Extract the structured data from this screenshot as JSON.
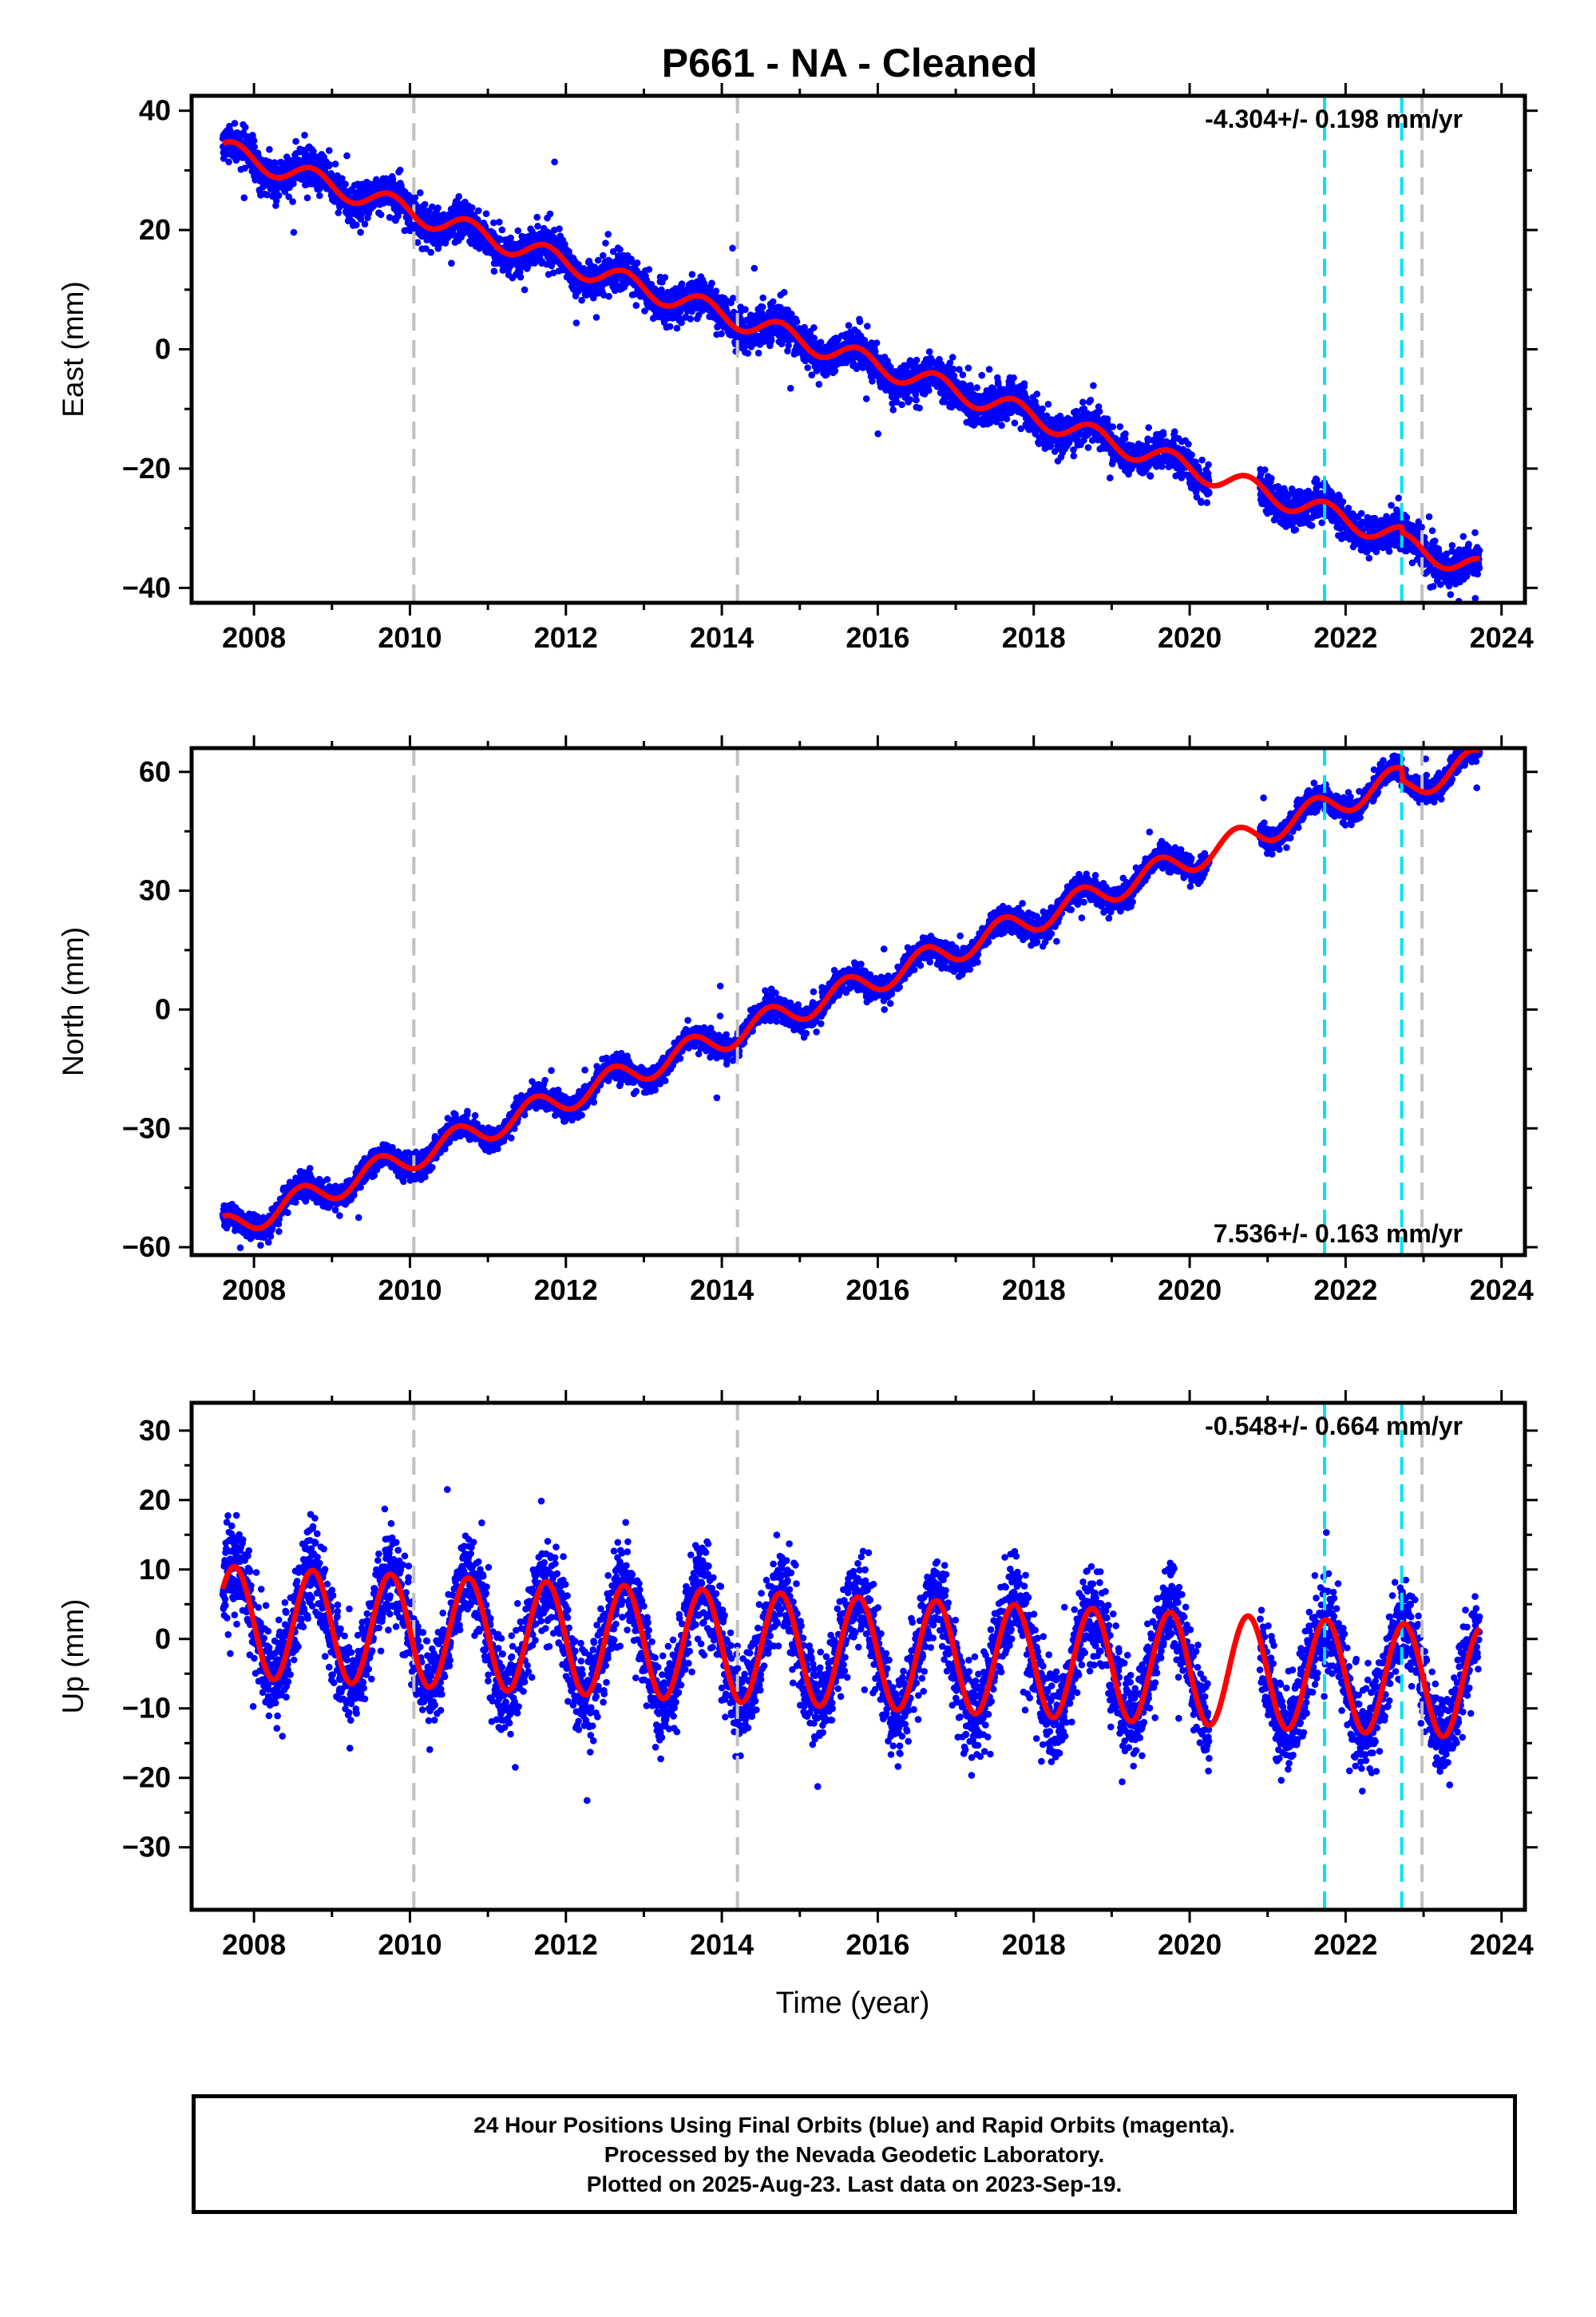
{
  "chart_data": {
    "title": "P661  - NA - Cleaned",
    "xlabel": "Time (year)",
    "xlim": [
      2007.2,
      2024.3
    ],
    "x_ticks": [
      2008,
      2010,
      2012,
      2014,
      2016,
      2018,
      2020,
      2022,
      2024
    ],
    "x_tick_labels": [
      "2008",
      "2010",
      "2012",
      "2014",
      "2016",
      "2018",
      "2020",
      "2022",
      "2024"
    ],
    "data_start": 2007.6,
    "data_end": 2023.72,
    "data_gap": [
      2020.25,
      2020.9
    ],
    "equipment_change_lines": [
      2010.05,
      2014.2,
      2022.98
    ],
    "earthquake_lines": [
      2021.73,
      2022.72
    ],
    "panels": [
      {
        "type": "scatter",
        "ylabel": "East (mm)",
        "ylim": [
          -42.5,
          42.5
        ],
        "y_ticks": [
          -40,
          -20,
          0,
          20,
          40
        ],
        "y_tick_labels": [
          "−40",
          "−20",
          "0",
          "20",
          "40"
        ],
        "rate_label": "-4.304+/- 0.198 mm/yr",
        "rate_position": "top-right",
        "model": {
          "y_at_start": 33.5,
          "rate_mm_per_yr": -4.304,
          "annual_amplitude": 1.8,
          "peak_phase_year": 0.75
        },
        "scatter_sigma": 1.6,
        "steps": [
          {
            "year": 2022.72,
            "offset": -1.0
          }
        ]
      },
      {
        "type": "scatter",
        "ylabel": "North (mm)",
        "ylim": [
          -62,
          66
        ],
        "y_ticks": [
          -60,
          -30,
          0,
          30,
          60
        ],
        "y_tick_labels": [
          "−60",
          "−30",
          "0",
          "30",
          "60"
        ],
        "rate_label": "7.536+/- 0.163 mm/yr",
        "rate_position": "bottom-right",
        "model": {
          "y_at_start": -55.5,
          "rate_mm_per_yr": 7.536,
          "annual_amplitude": 3.3,
          "peak_phase_year": 0.6
        },
        "scatter_sigma": 1.5,
        "steps": [
          {
            "year": 2022.72,
            "offset": -3.0
          }
        ]
      },
      {
        "type": "scatter",
        "ylabel": "Up (mm)",
        "ylim": [
          -39,
          34
        ],
        "y_ticks": [
          -30,
          -20,
          -10,
          0,
          10,
          20,
          30
        ],
        "y_tick_labels": [
          "−30",
          "−20",
          "−10",
          "0",
          "10",
          "20",
          "30"
        ],
        "rate_label": "-0.548+/- 0.664 mm/yr",
        "rate_position": "top-right",
        "model": {
          "y_at_start": 2.5,
          "rate_mm_per_yr": -0.548,
          "annual_amplitude": 8.0,
          "peak_phase_year": 0.75
        },
        "scatter_sigma": 3.2,
        "steps": []
      }
    ],
    "colors": {
      "points": "#0000ff",
      "model": "#ff0000",
      "equipment_lines": "#c0c0c0",
      "earthquake_lines": "#00e5ee",
      "frame": "#000000"
    }
  },
  "footer": {
    "line1": "24 Hour Positions Using Final Orbits (blue) and Rapid Orbits (magenta).",
    "line2": "Processed by the Nevada Geodetic Laboratory.",
    "line3": "Plotted on 2025-Aug-23. Last data on 2023-Sep-19."
  }
}
